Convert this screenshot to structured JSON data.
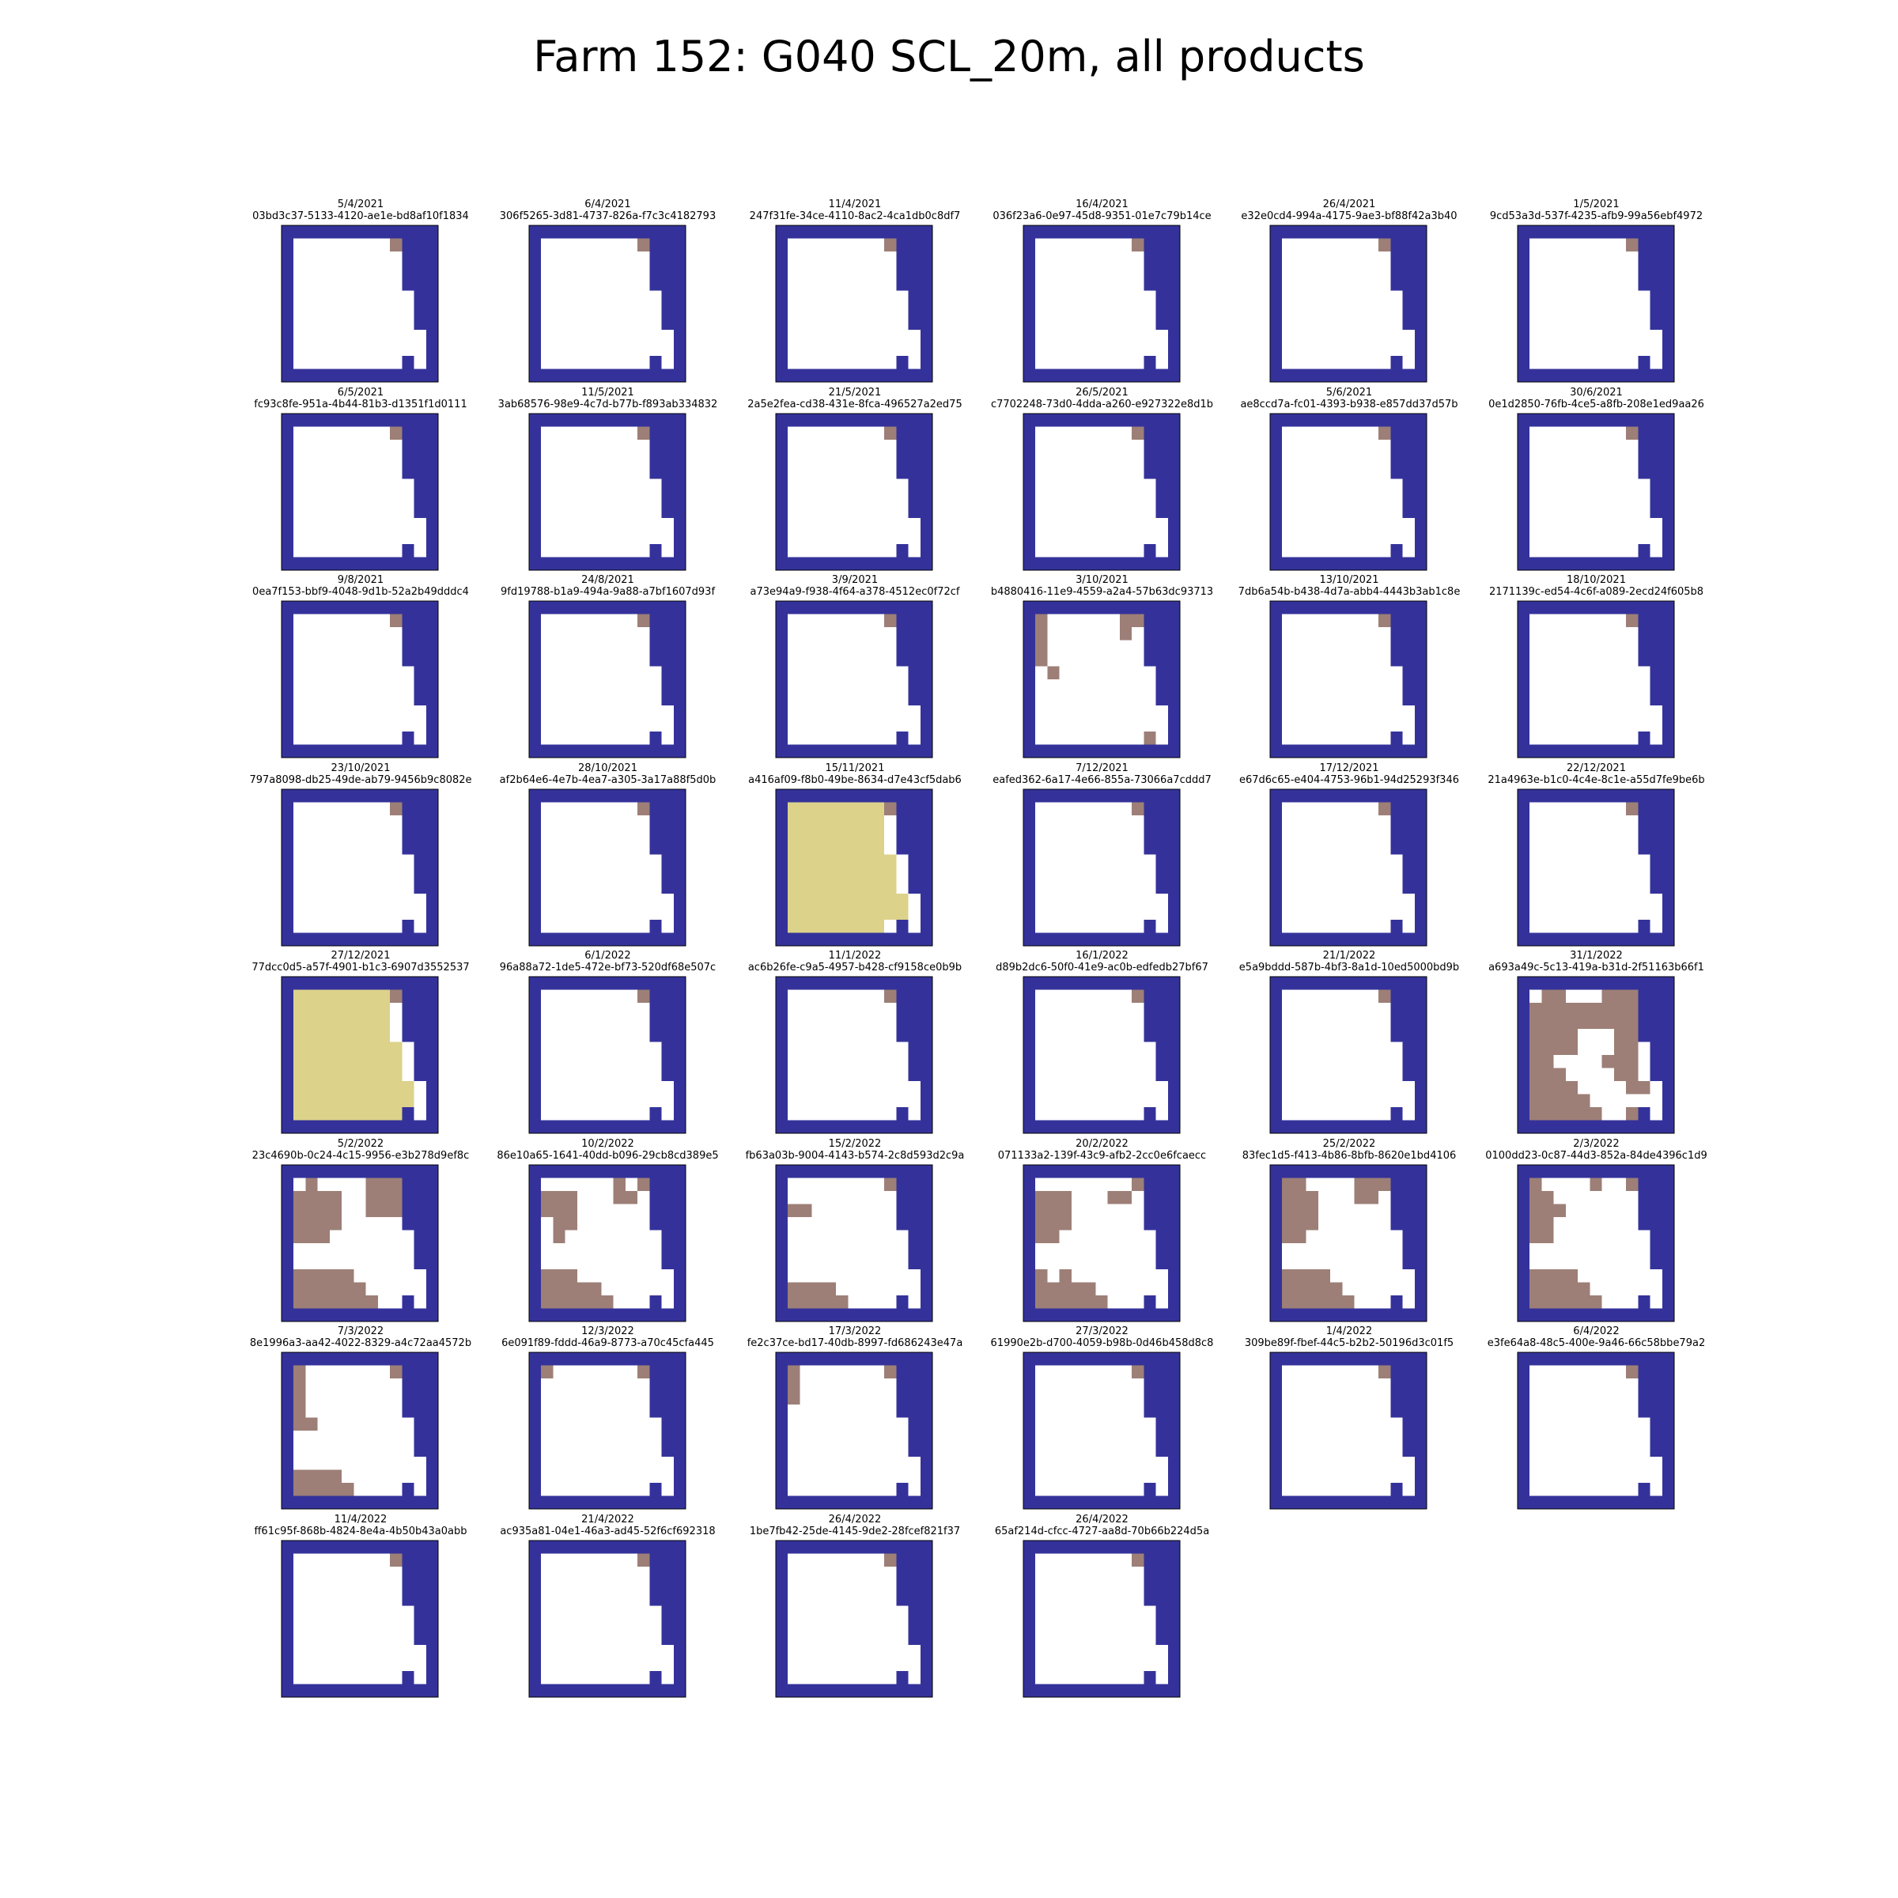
{
  "figure": {
    "title": "Farm 152: G040 SCL_20m, all products"
  },
  "chart_data": {
    "type": "heatmap",
    "title": "Farm 152: G040 SCL_20m, all products",
    "grid": false,
    "colors": {
      "0": "#34329a",
      "4": "#ffffff",
      "8": "#9d7f77",
      "9": "#dcd28a",
      "frame": "#000000"
    },
    "base_mask": [
      "0000000000000",
      "0444444448000",
      "0444444444000",
      "0444444444000",
      "0444444444000",
      "0444444444400",
      "0444444444400",
      "0444444444400",
      "0444444444440",
      "0444444444440",
      "0444444444040",
      "0000000000000"
    ],
    "panels": [
      {
        "date": "5/4/2021",
        "id": "03bd3c37-5133-4120-ae1e-bd8af10f1834",
        "overlay": []
      },
      {
        "date": "6/4/2021",
        "id": "306f5265-3d81-4737-826a-f7c3c4182793",
        "overlay": []
      },
      {
        "date": "11/4/2021",
        "id": "247f31fe-34ce-4110-8ac2-4ca1db0c8df7",
        "overlay": []
      },
      {
        "date": "16/4/2021",
        "id": "036f23a6-0e97-45d8-9351-01e7c79b14ce",
        "overlay": []
      },
      {
        "date": "26/4/2021",
        "id": "e32e0cd4-994a-4175-9ae3-bf88f42a3b40",
        "overlay": []
      },
      {
        "date": "1/5/2021",
        "id": "9cd53a3d-537f-4235-afb9-99a56ebf4972",
        "overlay": []
      },
      {
        "date": "6/5/2021",
        "id": "fc93c8fe-951a-4b44-81b3-d1351f1d0111",
        "overlay": []
      },
      {
        "date": "11/5/2021",
        "id": "3ab68576-98e9-4c7d-b77b-f893ab334832",
        "overlay": []
      },
      {
        "date": "21/5/2021",
        "id": "2a5e2fea-cd38-431e-8fca-496527a2ed75",
        "overlay": []
      },
      {
        "date": "26/5/2021",
        "id": "c7702248-73d0-4dda-a260-e927322e8d1b",
        "overlay": []
      },
      {
        "date": "5/6/2021",
        "id": "ae8ccd7a-fc01-4393-b938-e857dd37d57b",
        "overlay": []
      },
      {
        "date": "30/6/2021",
        "id": "0e1d2850-76fb-4ce5-a8fb-208e1ed9aa26",
        "overlay": []
      },
      {
        "date": "9/8/2021",
        "id": "0ea7f153-bbf9-4048-9d1b-52a2b49dddc4",
        "overlay": []
      },
      {
        "date": "24/8/2021",
        "id": "9fd19788-b1a9-494a-9a88-a7bf1607d93f",
        "overlay": []
      },
      {
        "date": "3/9/2021",
        "id": "a73e94a9-f938-4f64-a378-4512ec0f72cf",
        "overlay": []
      },
      {
        "date": "3/10/2021",
        "id": "b4880416-11e9-4559-a2a4-57b63dc93713",
        "overlay": [
          [
            1,
            1,
            8
          ],
          [
            2,
            1,
            8
          ],
          [
            3,
            1,
            8
          ],
          [
            4,
            1,
            8
          ],
          [
            5,
            2,
            8
          ],
          [
            1,
            8,
            8
          ],
          [
            2,
            8,
            8
          ],
          [
            10,
            10,
            8
          ]
        ]
      },
      {
        "date": "13/10/2021",
        "id": "7db6a54b-b438-4d7a-abb4-4443b3ab1c8e",
        "overlay": []
      },
      {
        "date": "18/10/2021",
        "id": "2171139c-ed54-4c6f-a089-2ecd24f605b8",
        "overlay": []
      },
      {
        "date": "23/10/2021",
        "id": "797a8098-db25-49de-ab79-9456b9c8082e",
        "overlay": []
      },
      {
        "date": "28/10/2021",
        "id": "af2b64e6-4e7b-4ea7-a305-3a17a88f5d0b",
        "overlay": []
      },
      {
        "date": "15/11/2021",
        "id": "a416af09-f8b0-49be-8634-d7e43cf5dab6",
        "overlay": [
          "rect:1:1:10:8:9",
          "rect:1:8:1:8:9",
          "rect:5:9:9:9:9",
          "rect:8:10:10:10:9",
          "rect:9:6:9:6:9",
          "rect:9:8:9:8:9"
        ]
      },
      {
        "date": "7/12/2021",
        "id": "eafed362-6a17-4e66-855a-73066a7cddd7",
        "overlay": []
      },
      {
        "date": "17/12/2021",
        "id": "e67d6c65-e404-4753-96b1-94d25293f346",
        "overlay": []
      },
      {
        "date": "22/12/2021",
        "id": "21a4963e-b1c0-4c4e-8c1e-a55d7fe9be6b",
        "overlay": []
      },
      {
        "date": "27/12/2021",
        "id": "77dcc0d5-a57f-4901-b1c3-6907d3552537",
        "overlay": [
          "rect:1:1:10:8:9",
          "rect:1:1:1:3:9",
          "rect:1:8:1:8:9",
          "rect:5:9:7:9:9",
          "rect:8:9:10:10:9"
        ]
      },
      {
        "date": "6/1/2022",
        "id": "96a88a72-1de5-472e-bf73-520df68e507c",
        "overlay": []
      },
      {
        "date": "11/1/2022",
        "id": "ac6b26fe-c9a5-4957-b428-cf9158ce0b9b",
        "overlay": []
      },
      {
        "date": "16/1/2022",
        "id": "d89b2dc6-50f0-41e9-ac0b-edfedb27bf67",
        "overlay": []
      },
      {
        "date": "21/1/2022",
        "id": "e5a9bddd-587b-4bf3-8a1d-10ed5000bd9b",
        "overlay": []
      },
      {
        "date": "31/1/2022",
        "id": "a693a49c-5c13-419a-b31d-2f51163b66f1",
        "overlay": [
          "rect:1:2:1:3:8",
          "rect:1:7:1:8:8",
          "rect:2:1:3:9:8",
          "rect:4:1:5:4:8",
          "rect:4:8:5:9:8",
          "rect:6:1:6:2:8",
          "rect:6:7:6:9:8",
          "rect:7:1:7:3:8",
          "rect:8:1:8:4:8",
          "rect:9:1:9:5:8",
          "rect:10:1:10:6:8",
          "rect:7:8:7:9:8",
          "rect:8:9:8:10:8",
          "rect:10:9:10:10:8"
        ]
      },
      {
        "date": "5/2/2022",
        "id": "23c4690b-0c24-4c15-9956-e3b278d9ef8c",
        "overlay": [
          "rect:1:2:1:2:8",
          "rect:2:1:4:4:8",
          "rect:5:1:5:3:8",
          "rect:1:7:1:8:8",
          "rect:2:7:3:9:8",
          "rect:8:1:8:5:8",
          "rect:9:1:9:6:8",
          "rect:10:1:10:7:8"
        ]
      },
      {
        "date": "10/2/2022",
        "id": "86e10a65-1641-40dd-b096-29cb8cd389e5",
        "overlay": [
          "rect:2:1:3:3:8",
          "rect:4:2:4:3:8",
          "rect:5:2:5:2:8",
          "rect:1:7:1:7:8",
          "rect:2:7:2:8:8",
          "rect:8:1:8:3:8",
          "rect:9:1:9:5:8",
          "rect:10:1:10:6:8"
        ]
      },
      {
        "date": "15/2/2022",
        "id": "fb63a03b-9004-4143-b574-2c8d593d2c9a",
        "overlay": [
          "rect:3:1:3:2:8",
          "rect:9:1:9:4:8",
          "rect:10:1:10:5:8"
        ]
      },
      {
        "date": "20/2/2022",
        "id": "071133a2-139f-43c9-afb2-2cc0e6fcaecc",
        "overlay": [
          "rect:2:1:4:3:8",
          "rect:5:1:5:2:8",
          "rect:2:7:2:8:8",
          "rect:8:1:8:1:8",
          "rect:8:3:8:3:8",
          "rect:9:1:9:5:8",
          "rect:10:1:10:6:8"
        ]
      },
      {
        "date": "25/2/2022",
        "id": "83fec1d5-f413-4b86-8bfb-8620e1bd4106",
        "overlay": [
          "rect:1:1:1:2:8",
          "rect:2:1:4:3:8",
          "rect:5:1:5:2:8",
          "rect:1:7:2:8:8",
          "rect:8:1:8:4:8",
          "rect:9:1:9:5:8",
          "rect:10:1:10:6:8"
        ]
      },
      {
        "date": "2/3/2022",
        "id": "0100dd23-0c87-44d3-852a-84de4396c1d9",
        "overlay": [
          "rect:1:1:1:1:8",
          "rect:2:1:2:2:8",
          "rect:3:1:3:3:8",
          "rect:4:1:5:2:8",
          "rect:1:6:1:6:8",
          "rect:8:1:8:4:8",
          "rect:9:1:9:5:8",
          "rect:10:1:10:6:8"
        ]
      },
      {
        "date": "7/3/2022",
        "id": "8e1996a3-aa42-4022-8329-a4c72aa4572b",
        "overlay": [
          "rect:1:1:4:1:8",
          "rect:5:1:5:2:8",
          "rect:9:1:9:4:8",
          "rect:10:1:10:5:8"
        ]
      },
      {
        "date": "12/3/2022",
        "id": "6e091f89-fddd-46a9-8773-a70c45cfa445",
        "overlay": [
          "rect:1:1:1:1:8"
        ]
      },
      {
        "date": "17/3/2022",
        "id": "fe2c37ce-bd17-40db-8997-fd686243e47a",
        "overlay": [
          "rect:1:1:3:1:8"
        ]
      },
      {
        "date": "27/3/2022",
        "id": "61990e2b-d700-4059-b98b-0d46b458d8c8",
        "overlay": []
      },
      {
        "date": "1/4/2022",
        "id": "309be89f-fbef-44c5-b2b2-50196d3c01f5",
        "overlay": []
      },
      {
        "date": "6/4/2022",
        "id": "e3fe64a8-48c5-400e-9a46-66c58bbe79a2",
        "overlay": []
      },
      {
        "date": "11/4/2022",
        "id": "ff61c95f-868b-4824-8e4a-4b50b43a0abb",
        "overlay": []
      },
      {
        "date": "21/4/2022",
        "id": "ac935a81-04e1-46a3-ad45-52f6cf692318",
        "overlay": []
      },
      {
        "date": "26/4/2022",
        "id": "1be7fb42-25de-4145-9de2-28fcef821f37",
        "overlay": []
      },
      {
        "date": "26/4/2022",
        "id": "65af214d-cfcc-4727-aa8d-70b66b224d5a",
        "overlay": []
      }
    ]
  }
}
